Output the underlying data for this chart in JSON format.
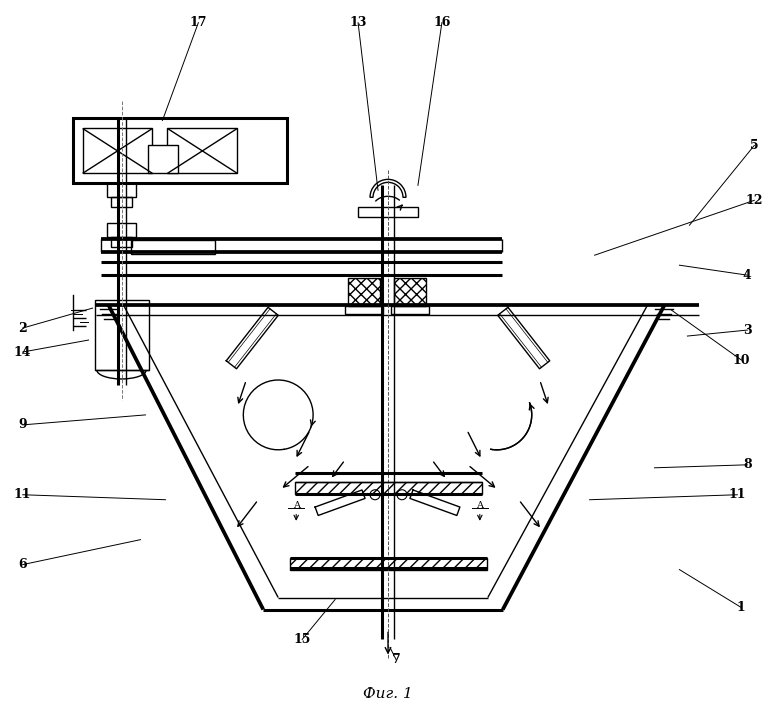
{
  "title": "Фиг. 1",
  "bg_color": "#ffffff",
  "line_color": "#000000"
}
